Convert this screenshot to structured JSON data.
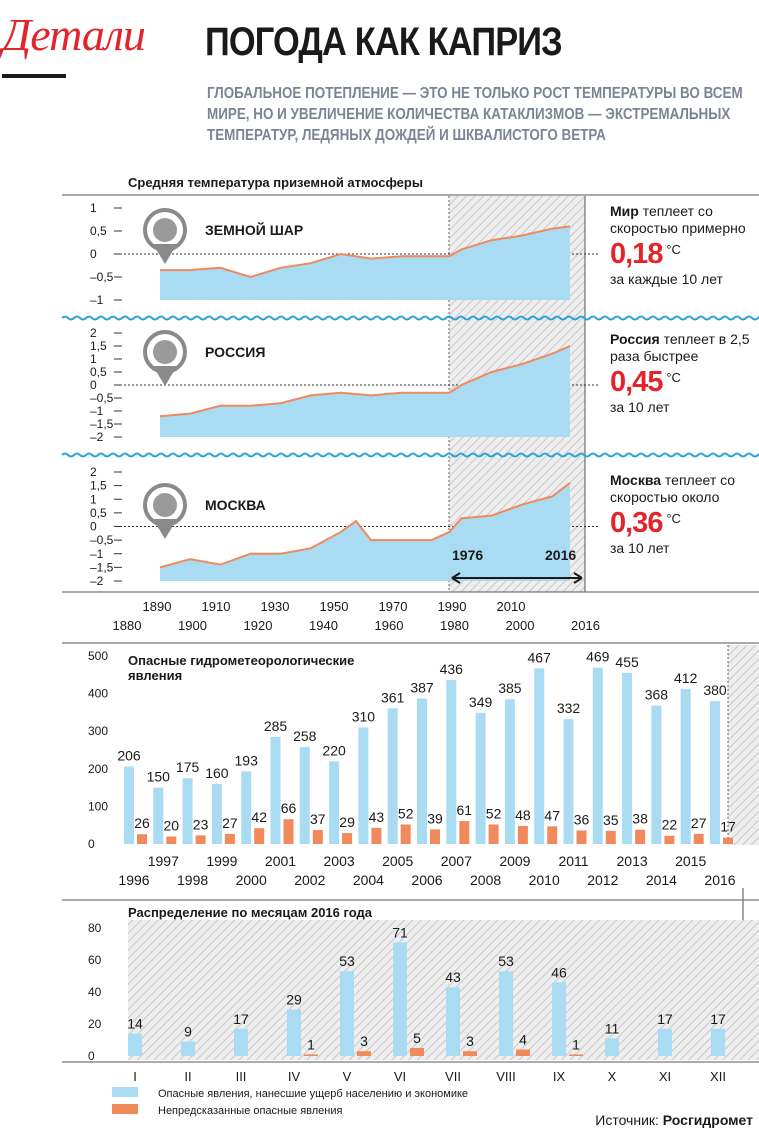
{
  "logo": "Детали",
  "headline": "ПОГОДА КАК КАПРИЗ",
  "lead": "ГЛОБАЛЬНОЕ ПОТЕПЛЕНИЕ — ЭТО НЕ ТОЛЬКО РОСТ ТЕМПЕРАТУРЫ ВО ВСЕМ МИРЕ, НО И УВЕЛИЧЕНИЕ КОЛИЧЕСТВА КАТАКЛИЗМОВ — ЭКСТРЕМАЛЬНЫХ ТЕМПЕРАТУР, ЛЕДЯНЫХ ДОЖДЕЙ И ШКВАЛИСТОГО ВЕТРА",
  "source_label": "Источник:",
  "source_name": "Росгидромет",
  "colors": {
    "accent": "#e2252b",
    "area": "#a9dcf3",
    "line": "#f08a5d",
    "bar_blue": "#a9dcf3",
    "bar_orange": "#f08a5d",
    "hatch": "#c8c8c8",
    "wave": "#29a3dc"
  },
  "sidebars": [
    {
      "bold": "Мир",
      "rest": " теплеет со скоростью примерно",
      "value": "0,18",
      "unit": "°С",
      "tail": "за каждые 10 лет"
    },
    {
      "bold": "Россия",
      "rest": " теплеет в 2,5 раза быстрее",
      "value": "0,45",
      "unit": "°С",
      "tail": "за 10 лет"
    },
    {
      "bold": "Москва",
      "rest": " теплеет со скоростью около",
      "value": "0,36",
      "unit": "°С",
      "tail": "за 10 лет"
    }
  ],
  "chart_data": [
    {
      "type": "area",
      "title": "Средняя температура приземной атмосферы",
      "x_ticks_top": [
        "1890",
        "1910",
        "1930",
        "1950",
        "1970",
        "1990",
        "2010"
      ],
      "x_ticks_bottom": [
        "1880",
        "1900",
        "1920",
        "1940",
        "1960",
        "1980",
        "2000",
        "2016"
      ],
      "xlim": [
        1880,
        2016
      ],
      "highlight": {
        "from": "1976",
        "to": "2016"
      },
      "panels": [
        {
          "name": "ЗЕМНОЙ ШАР",
          "icon": "globe-icon",
          "y_ticks": [
            "1",
            "0,5",
            "0",
            "–0,5",
            "–1"
          ],
          "ylim": [
            -1,
            1
          ],
          "x": [
            1880,
            1890,
            1900,
            1910,
            1920,
            1930,
            1940,
            1950,
            1960,
            1970,
            1976,
            1980,
            1990,
            2000,
            2010,
            2016
          ],
          "y": [
            -0.35,
            -0.35,
            -0.3,
            -0.5,
            -0.3,
            -0.2,
            0.0,
            -0.1,
            -0.05,
            -0.05,
            -0.05,
            0.1,
            0.3,
            0.4,
            0.55,
            0.6
          ]
        },
        {
          "name": "РОССИЯ",
          "icon": "russia-map-icon",
          "y_ticks": [
            "2",
            "1,5",
            "1",
            "0,5",
            "0",
            "–0,5",
            "–1",
            "–1,5",
            "–2"
          ],
          "ylim": [
            -2,
            2
          ],
          "x": [
            1880,
            1890,
            1900,
            1910,
            1920,
            1930,
            1940,
            1950,
            1960,
            1970,
            1976,
            1980,
            1990,
            2000,
            2010,
            2016
          ],
          "y": [
            -1.2,
            -1.1,
            -0.8,
            -0.8,
            -0.7,
            -0.4,
            -0.3,
            -0.4,
            -0.3,
            -0.3,
            -0.3,
            0.0,
            0.5,
            0.8,
            1.2,
            1.5
          ]
        },
        {
          "name": "МОСКВА",
          "icon": "kremlin-icon",
          "y_ticks": [
            "2",
            "1,5",
            "1",
            "0,5",
            "0",
            "–0,5",
            "–1",
            "–1,5",
            "–2"
          ],
          "ylim": [
            -2,
            2
          ],
          "x": [
            1880,
            1890,
            1900,
            1910,
            1920,
            1930,
            1940,
            1945,
            1950,
            1960,
            1970,
            1976,
            1980,
            1990,
            2000,
            2010,
            2016
          ],
          "y": [
            -1.5,
            -1.2,
            -1.4,
            -1.0,
            -1.0,
            -0.8,
            -0.2,
            0.2,
            -0.5,
            -0.5,
            -0.5,
            -0.2,
            0.3,
            0.4,
            0.8,
            1.1,
            1.6
          ]
        }
      ]
    },
    {
      "type": "bar",
      "title": "Опасные гидрометеорологические явления",
      "y_ticks": [
        "500",
        "400",
        "300",
        "200",
        "100",
        "0"
      ],
      "ylim": [
        0,
        500
      ],
      "categories": [
        "1996",
        "1997",
        "1998",
        "1999",
        "2000",
        "2001",
        "2002",
        "2003",
        "2004",
        "2005",
        "2006",
        "2007",
        "2008",
        "2009",
        "2010",
        "2011",
        "2012",
        "2013",
        "2014",
        "2015",
        "2016"
      ],
      "series": [
        {
          "values": [
            206,
            150,
            175,
            160,
            193,
            285,
            258,
            220,
            310,
            361,
            387,
            436,
            349,
            385,
            467,
            332,
            469,
            455,
            368,
            412,
            380
          ]
        },
        {
          "values": [
            26,
            20,
            23,
            27,
            42,
            66,
            37,
            29,
            43,
            52,
            39,
            61,
            52,
            48,
            47,
            36,
            35,
            38,
            22,
            27,
            17
          ]
        }
      ]
    },
    {
      "type": "bar",
      "title": "Распределение по месяцам 2016 года",
      "y_ticks": [
        "80",
        "60",
        "40",
        "20",
        "0"
      ],
      "ylim": [
        0,
        80
      ],
      "categories": [
        "I",
        "II",
        "III",
        "IV",
        "V",
        "VI",
        "VII",
        "VIII",
        "IX",
        "X",
        "XI",
        "XII"
      ],
      "series": [
        {
          "name": "Опасные явления, нанесшие ущерб населению и экономике",
          "values": [
            14,
            9,
            17,
            29,
            53,
            71,
            43,
            53,
            46,
            11,
            17,
            17
          ]
        },
        {
          "name": "Непредсказанные опасные явления",
          "values": [
            null,
            null,
            null,
            1,
            3,
            5,
            3,
            4,
            1,
            null,
            null,
            null
          ]
        }
      ]
    }
  ]
}
